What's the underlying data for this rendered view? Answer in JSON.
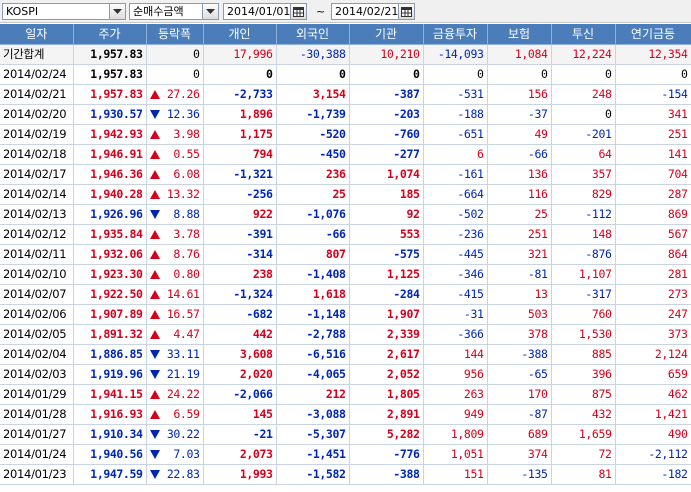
{
  "toolbar": {
    "index_select": "KOSPI",
    "type_select": "순매수금액",
    "start_date": "2014/01/01",
    "separator": "~",
    "end_date": "2014/02/21"
  },
  "colors": {
    "header_bg": "#4c7dbb",
    "up": "#d4001c",
    "down": "#0026b4"
  },
  "columns": [
    "일자",
    "주가",
    "등락폭",
    "개인",
    "외국인",
    "기관",
    "금융투자",
    "보험",
    "투신",
    "연기금등"
  ],
  "summary_row": {
    "date": "기간합계",
    "price": "1,957.83",
    "change": "0",
    "individual": "17,996",
    "foreign": "-30,388",
    "institution": "10,210",
    "fin_invest": "-14,093",
    "insurance": "1,084",
    "trust": "12,224",
    "pension": "12,354"
  },
  "rows": [
    {
      "date": "2014/02/24",
      "price": "1,957.83",
      "dir": "none",
      "change": "0",
      "individual": "0",
      "foreign": "0",
      "institution": "0",
      "fin_invest": "0",
      "insurance": "0",
      "trust": "0",
      "pension": "0"
    },
    {
      "date": "2014/02/21",
      "price": "1,957.83",
      "dir": "up",
      "change": "27.26",
      "individual": "-2,733",
      "foreign": "3,154",
      "institution": "-387",
      "fin_invest": "-531",
      "insurance": "156",
      "trust": "248",
      "pension": "-154"
    },
    {
      "date": "2014/02/20",
      "price": "1,930.57",
      "dir": "down",
      "change": "12.36",
      "individual": "1,896",
      "foreign": "-1,739",
      "institution": "-203",
      "fin_invest": "-188",
      "insurance": "-37",
      "trust": "0",
      "pension": "341"
    },
    {
      "date": "2014/02/19",
      "price": "1,942.93",
      "dir": "up",
      "change": "3.98",
      "individual": "1,175",
      "foreign": "-520",
      "institution": "-760",
      "fin_invest": "-651",
      "insurance": "49",
      "trust": "-201",
      "pension": "251"
    },
    {
      "date": "2014/02/18",
      "price": "1,946.91",
      "dir": "up",
      "change": "0.55",
      "individual": "794",
      "foreign": "-450",
      "institution": "-277",
      "fin_invest": "6",
      "insurance": "-66",
      "trust": "64",
      "pension": "141"
    },
    {
      "date": "2014/02/17",
      "price": "1,946.36",
      "dir": "up",
      "change": "6.08",
      "individual": "-1,321",
      "foreign": "236",
      "institution": "1,074",
      "fin_invest": "-161",
      "insurance": "136",
      "trust": "357",
      "pension": "704"
    },
    {
      "date": "2014/02/14",
      "price": "1,940.28",
      "dir": "up",
      "change": "13.32",
      "individual": "-256",
      "foreign": "25",
      "institution": "185",
      "fin_invest": "-664",
      "insurance": "116",
      "trust": "829",
      "pension": "287"
    },
    {
      "date": "2014/02/13",
      "price": "1,926.96",
      "dir": "down",
      "change": "8.88",
      "individual": "922",
      "foreign": "-1,076",
      "institution": "92",
      "fin_invest": "-502",
      "insurance": "25",
      "trust": "-112",
      "pension": "869"
    },
    {
      "date": "2014/02/12",
      "price": "1,935.84",
      "dir": "up",
      "change": "3.78",
      "individual": "-391",
      "foreign": "-66",
      "institution": "553",
      "fin_invest": "-236",
      "insurance": "251",
      "trust": "148",
      "pension": "567"
    },
    {
      "date": "2014/02/11",
      "price": "1,932.06",
      "dir": "up",
      "change": "8.76",
      "individual": "-314",
      "foreign": "807",
      "institution": "-575",
      "fin_invest": "-445",
      "insurance": "321",
      "trust": "-876",
      "pension": "864"
    },
    {
      "date": "2014/02/10",
      "price": "1,923.30",
      "dir": "up",
      "change": "0.80",
      "individual": "238",
      "foreign": "-1,408",
      "institution": "1,125",
      "fin_invest": "-346",
      "insurance": "-81",
      "trust": "1,107",
      "pension": "281"
    },
    {
      "date": "2014/02/07",
      "price": "1,922.50",
      "dir": "up",
      "change": "14.61",
      "individual": "-1,324",
      "foreign": "1,618",
      "institution": "-284",
      "fin_invest": "-415",
      "insurance": "13",
      "trust": "-317",
      "pension": "273"
    },
    {
      "date": "2014/02/06",
      "price": "1,907.89",
      "dir": "up",
      "change": "16.57",
      "individual": "-682",
      "foreign": "-1,148",
      "institution": "1,907",
      "fin_invest": "-31",
      "insurance": "503",
      "trust": "760",
      "pension": "247"
    },
    {
      "date": "2014/02/05",
      "price": "1,891.32",
      "dir": "up",
      "change": "4.47",
      "individual": "442",
      "foreign": "-2,788",
      "institution": "2,339",
      "fin_invest": "-366",
      "insurance": "378",
      "trust": "1,530",
      "pension": "373"
    },
    {
      "date": "2014/02/04",
      "price": "1,886.85",
      "dir": "down",
      "change": "33.11",
      "individual": "3,608",
      "foreign": "-6,516",
      "institution": "2,617",
      "fin_invest": "144",
      "insurance": "-388",
      "trust": "885",
      "pension": "2,124"
    },
    {
      "date": "2014/02/03",
      "price": "1,919.96",
      "dir": "down",
      "change": "21.19",
      "individual": "2,020",
      "foreign": "-4,065",
      "institution": "2,052",
      "fin_invest": "956",
      "insurance": "-65",
      "trust": "396",
      "pension": "659"
    },
    {
      "date": "2014/01/29",
      "price": "1,941.15",
      "dir": "up",
      "change": "24.22",
      "individual": "-2,066",
      "foreign": "212",
      "institution": "1,805",
      "fin_invest": "263",
      "insurance": "170",
      "trust": "875",
      "pension": "462"
    },
    {
      "date": "2014/01/28",
      "price": "1,916.93",
      "dir": "up",
      "change": "6.59",
      "individual": "145",
      "foreign": "-3,088",
      "institution": "2,891",
      "fin_invest": "949",
      "insurance": "-87",
      "trust": "432",
      "pension": "1,421"
    },
    {
      "date": "2014/01/27",
      "price": "1,910.34",
      "dir": "down",
      "change": "30.22",
      "individual": "-21",
      "foreign": "-5,307",
      "institution": "5,282",
      "fin_invest": "1,809",
      "insurance": "689",
      "trust": "1,659",
      "pension": "490"
    },
    {
      "date": "2014/01/24",
      "price": "1,940.56",
      "dir": "down",
      "change": "7.03",
      "individual": "2,073",
      "foreign": "-1,451",
      "institution": "-776",
      "fin_invest": "1,051",
      "insurance": "374",
      "trust": "72",
      "pension": "-2,112"
    },
    {
      "date": "2014/01/23",
      "price": "1,947.59",
      "dir": "down",
      "change": "22.83",
      "individual": "1,993",
      "foreign": "-1,582",
      "institution": "-388",
      "fin_invest": "151",
      "insurance": "-135",
      "trust": "81",
      "pension": "-182"
    }
  ]
}
